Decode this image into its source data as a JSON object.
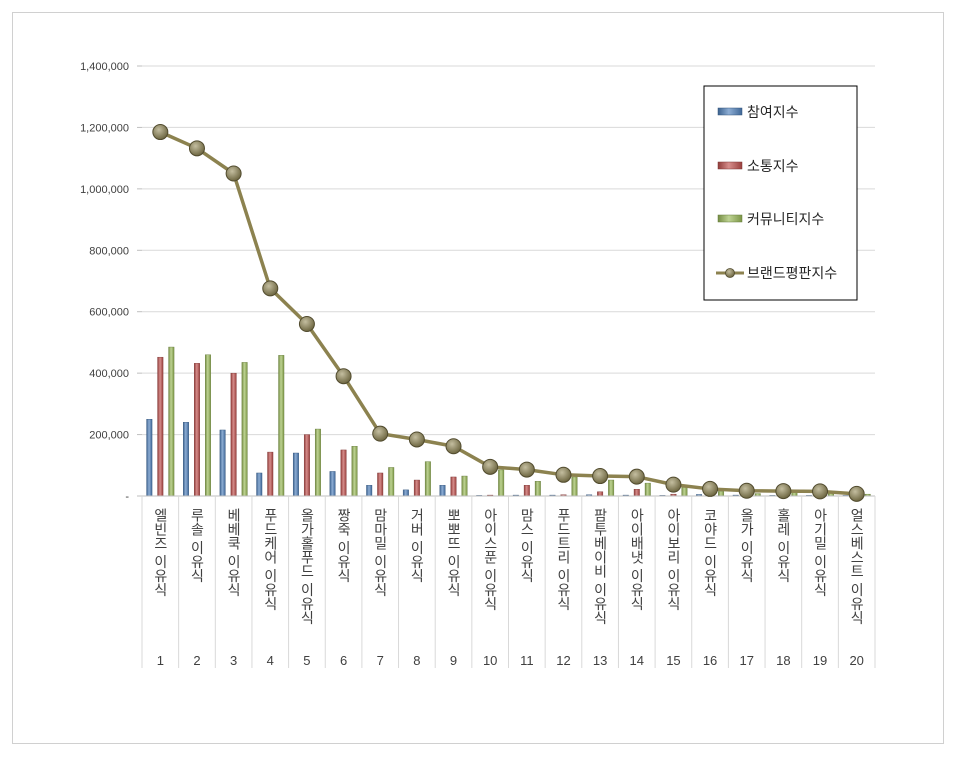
{
  "chart_data": {
    "type": "bar",
    "title": "",
    "xlabel": "",
    "ylabel": "",
    "ylim": [
      0,
      1400000
    ],
    "yticks": [
      {
        "value": 0,
        "label": "-"
      },
      {
        "value": 200000,
        "label": "200,000"
      },
      {
        "value": 400000,
        "label": "400,000"
      },
      {
        "value": 600000,
        "label": "600,000"
      },
      {
        "value": 800000,
        "label": "800,000"
      },
      {
        "value": 1000000,
        "label": "1,000,000"
      },
      {
        "value": 1200000,
        "label": "1,200,000"
      },
      {
        "value": 1400000,
        "label": "1,400,000"
      }
    ],
    "grid": true,
    "legend_position": "top-right",
    "categories": [
      "엘빈즈 이유식",
      "루솔 이유식",
      "베베쿡 이유식",
      "푸드케어 이유식",
      "올가홀푸드 이유식",
      "짱죽 이유식",
      "맘마밀 이유식",
      "거버 이유식",
      "뽀뽀뜨 이유식",
      "아이스푼 이유식",
      "맘스 이유식",
      "푸드트리 이유식",
      "팜투베이비 이유식",
      "아이배냇 이유식",
      "아이보리 이유식",
      "코야드 이유식",
      "올가 이유식",
      "홀레 이유식",
      "아기밀 이유식",
      "얼스베스트 이유식"
    ],
    "ranks": [
      "1",
      "2",
      "3",
      "4",
      "5",
      "6",
      "7",
      "8",
      "9",
      "10",
      "11",
      "12",
      "13",
      "14",
      "15",
      "16",
      "17",
      "18",
      "19",
      "20"
    ],
    "series": [
      {
        "name": "참여지수",
        "kind": "bar",
        "color": "#4f81bd",
        "values": [
          250000,
          240000,
          215000,
          75000,
          140000,
          80000,
          35000,
          20000,
          35000,
          2000,
          3000,
          3000,
          4000,
          3000,
          2000,
          5000,
          3000,
          2000,
          2000,
          1000
        ]
      },
      {
        "name": "소통지수",
        "kind": "bar",
        "color": "#c0504d",
        "values": [
          452000,
          432000,
          400000,
          143000,
          200000,
          150000,
          75000,
          52000,
          62000,
          3000,
          35000,
          4000,
          14000,
          22000,
          6000,
          6000,
          4000,
          3000,
          4000,
          2000
        ]
      },
      {
        "name": "커뮤니티지수",
        "kind": "bar",
        "color": "#9bbb59",
        "values": [
          485000,
          460000,
          435000,
          458000,
          218000,
          162000,
          93000,
          112000,
          65000,
          85000,
          48000,
          62000,
          52000,
          42000,
          28000,
          15000,
          8000,
          12000,
          11000,
          6000
        ]
      },
      {
        "name": "브랜드평판지수",
        "kind": "line",
        "color": "#938953",
        "values": [
          1185000,
          1132000,
          1050000,
          676000,
          560000,
          390000,
          203000,
          184000,
          162000,
          95000,
          86000,
          69000,
          65000,
          63000,
          37000,
          23000,
          17000,
          16000,
          15000,
          7000
        ]
      }
    ]
  }
}
